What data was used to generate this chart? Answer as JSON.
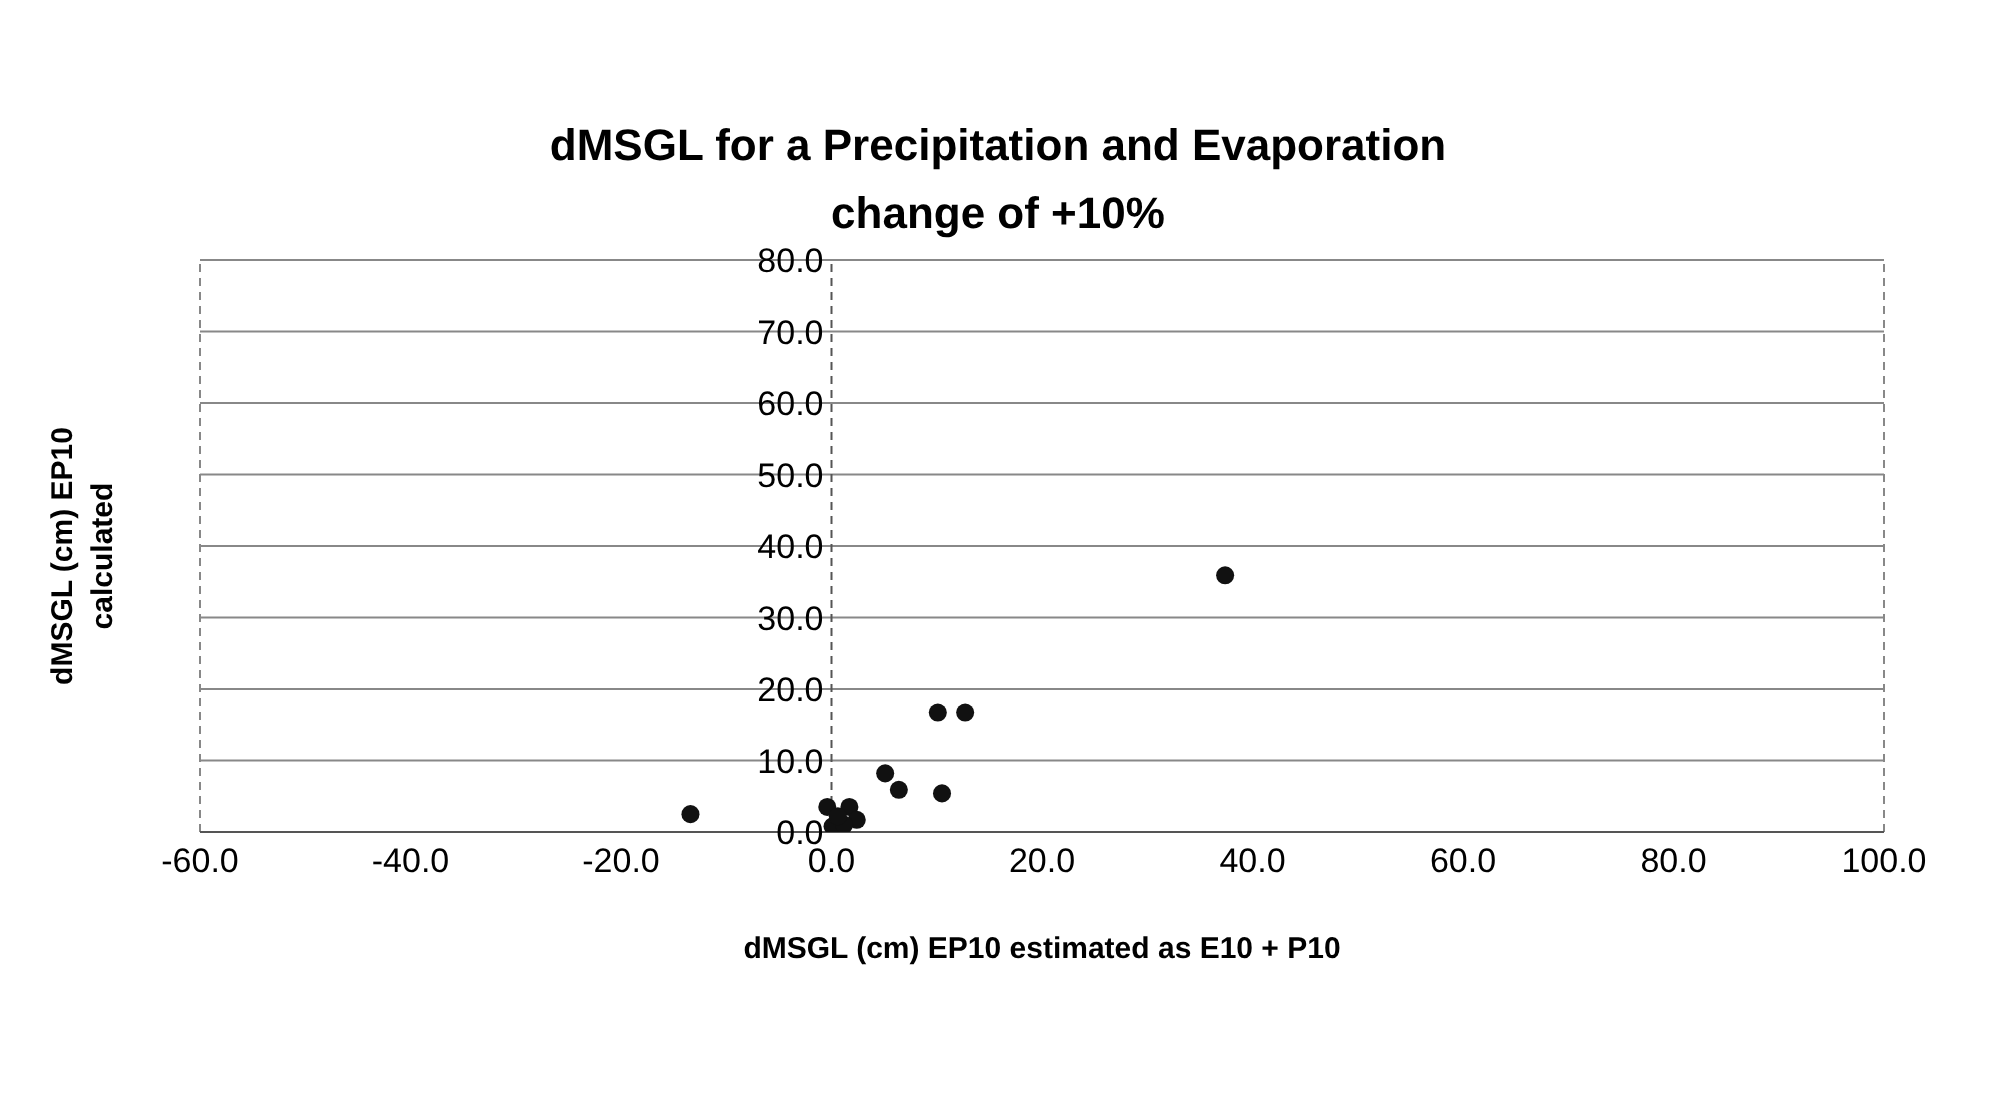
{
  "chart_data": {
    "type": "scatter",
    "title": "dMSGL for a Precipitation and Evaporation change of +10%",
    "xlabel": "dMSGL (cm) EP10 estimated as E10 + P10",
    "ylabel": "dMSGL (cm) EP10 calculated",
    "x": [
      -13.4,
      37.4,
      10.1,
      12.7,
      5.1,
      6.4,
      10.5,
      -0.4,
      1.7,
      2.4,
      0.1,
      1.2,
      0.6
    ],
    "series": [
      {
        "color": "#111111",
        "values": [
          2.5,
          35.9,
          16.7,
          16.7,
          8.2,
          5.9,
          5.4,
          3.5,
          3.5,
          1.7,
          0.8,
          1.0,
          2.2
        ]
      }
    ],
    "xlim": [
      -60,
      100
    ],
    "ylim": [
      0,
      80
    ],
    "xticks": [
      {
        "value": -60,
        "label": "-60.0"
      },
      {
        "value": -40,
        "label": "-40.0"
      },
      {
        "value": -20,
        "label": "-20.0"
      },
      {
        "value": 0,
        "label": "0.0"
      },
      {
        "value": 20,
        "label": "20.0"
      },
      {
        "value": 40,
        "label": "40.0"
      },
      {
        "value": 60,
        "label": "60.0"
      },
      {
        "value": 80,
        "label": "80.0"
      },
      {
        "value": 100,
        "label": "100.0"
      }
    ],
    "yticks": [
      {
        "value": 0,
        "label": "0.0"
      },
      {
        "value": 10,
        "label": "10.0"
      },
      {
        "value": 20,
        "label": "20.0"
      },
      {
        "value": 30,
        "label": "30.0"
      },
      {
        "value": 40,
        "label": "40.0"
      },
      {
        "value": 50,
        "label": "50.0"
      },
      {
        "value": 60,
        "label": "60.0"
      },
      {
        "value": 70,
        "label": "70.0"
      },
      {
        "value": 80,
        "label": "80.0"
      }
    ],
    "ref_lines": [
      {
        "axis": "x",
        "value": 0,
        "color": "#555555",
        "line_style": "dashed"
      }
    ],
    "grid": "y",
    "legend": false,
    "marker": "circle"
  }
}
